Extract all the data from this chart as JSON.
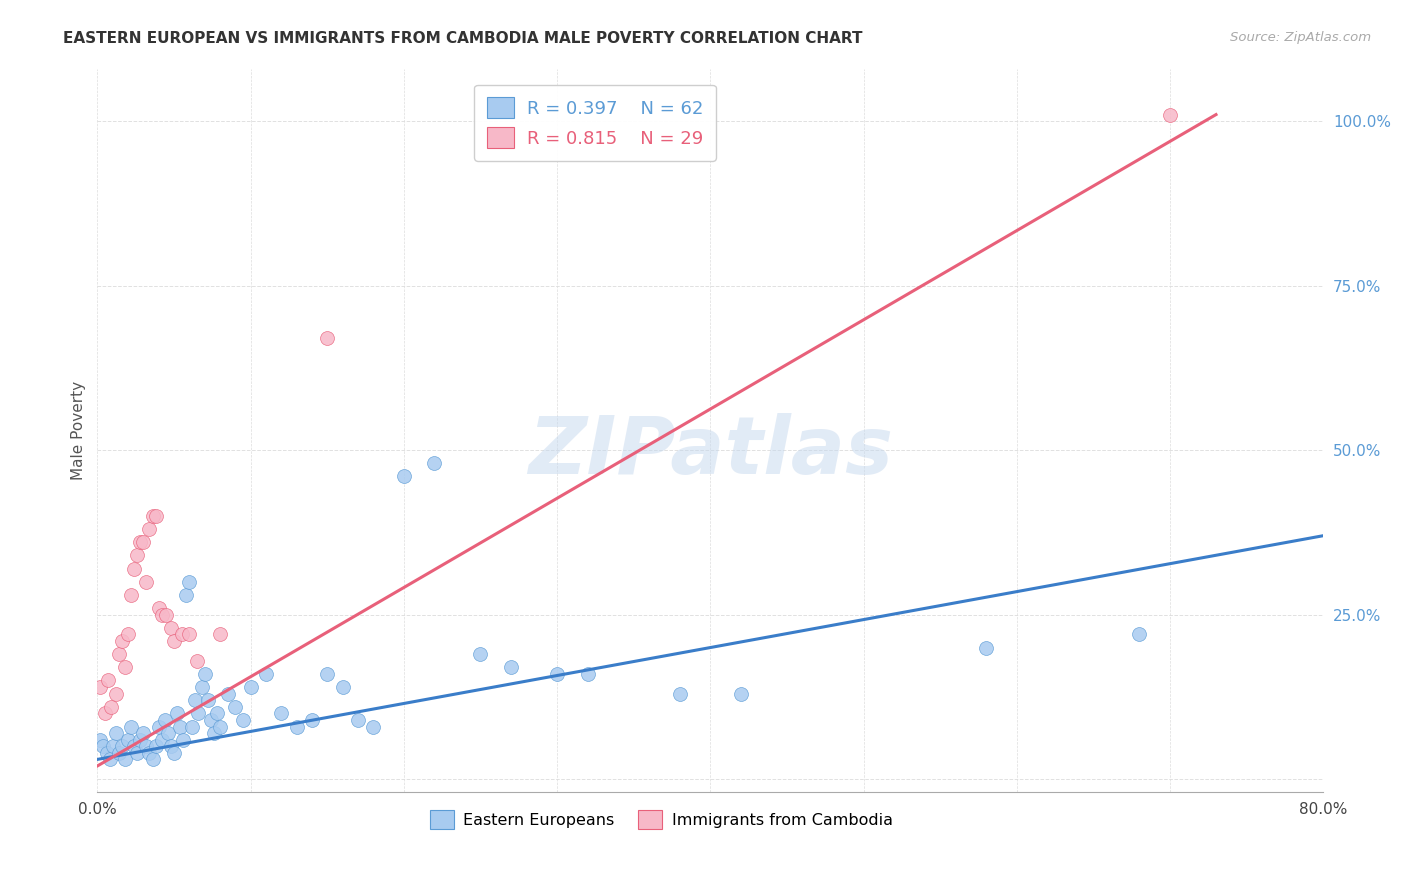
{
  "title": "EASTERN EUROPEAN VS IMMIGRANTS FROM CAMBODIA MALE POVERTY CORRELATION CHART",
  "source_text": "Source: ZipAtlas.com",
  "ylabel": "Male Poverty",
  "xlim": [
    0.0,
    0.8
  ],
  "ylim": [
    -0.02,
    1.08
  ],
  "xticks": [
    0.0,
    0.1,
    0.2,
    0.3,
    0.4,
    0.5,
    0.6,
    0.7,
    0.8
  ],
  "xticklabels": [
    "0.0%",
    "",
    "",
    "",
    "",
    "",
    "",
    "",
    "80.0%"
  ],
  "yticks": [
    0.0,
    0.25,
    0.5,
    0.75,
    1.0
  ],
  "yticklabels": [
    "",
    "25.0%",
    "50.0%",
    "75.0%",
    "100.0%"
  ],
  "legend_R1": "R = 0.397",
  "legend_N1": "N = 62",
  "legend_R2": "R = 0.815",
  "legend_N2": "N = 29",
  "watermark": "ZIPatlas",
  "blue_color": "#A8CBF0",
  "pink_color": "#F7B8C8",
  "blue_edge_color": "#5B9BD5",
  "pink_edge_color": "#E8607A",
  "blue_line_color": "#3A7DC9",
  "pink_line_color": "#E8607A",
  "blue_scatter": [
    [
      0.002,
      0.06
    ],
    [
      0.004,
      0.05
    ],
    [
      0.006,
      0.04
    ],
    [
      0.008,
      0.03
    ],
    [
      0.01,
      0.05
    ],
    [
      0.012,
      0.07
    ],
    [
      0.014,
      0.04
    ],
    [
      0.016,
      0.05
    ],
    [
      0.018,
      0.03
    ],
    [
      0.02,
      0.06
    ],
    [
      0.022,
      0.08
    ],
    [
      0.024,
      0.05
    ],
    [
      0.026,
      0.04
    ],
    [
      0.028,
      0.06
    ],
    [
      0.03,
      0.07
    ],
    [
      0.032,
      0.05
    ],
    [
      0.034,
      0.04
    ],
    [
      0.036,
      0.03
    ],
    [
      0.038,
      0.05
    ],
    [
      0.04,
      0.08
    ],
    [
      0.042,
      0.06
    ],
    [
      0.044,
      0.09
    ],
    [
      0.046,
      0.07
    ],
    [
      0.048,
      0.05
    ],
    [
      0.05,
      0.04
    ],
    [
      0.052,
      0.1
    ],
    [
      0.054,
      0.08
    ],
    [
      0.056,
      0.06
    ],
    [
      0.058,
      0.28
    ],
    [
      0.06,
      0.3
    ],
    [
      0.062,
      0.08
    ],
    [
      0.064,
      0.12
    ],
    [
      0.066,
      0.1
    ],
    [
      0.068,
      0.14
    ],
    [
      0.07,
      0.16
    ],
    [
      0.072,
      0.12
    ],
    [
      0.074,
      0.09
    ],
    [
      0.076,
      0.07
    ],
    [
      0.078,
      0.1
    ],
    [
      0.08,
      0.08
    ],
    [
      0.085,
      0.13
    ],
    [
      0.09,
      0.11
    ],
    [
      0.095,
      0.09
    ],
    [
      0.1,
      0.14
    ],
    [
      0.11,
      0.16
    ],
    [
      0.12,
      0.1
    ],
    [
      0.13,
      0.08
    ],
    [
      0.14,
      0.09
    ],
    [
      0.15,
      0.16
    ],
    [
      0.16,
      0.14
    ],
    [
      0.17,
      0.09
    ],
    [
      0.18,
      0.08
    ],
    [
      0.2,
      0.46
    ],
    [
      0.22,
      0.48
    ],
    [
      0.25,
      0.19
    ],
    [
      0.27,
      0.17
    ],
    [
      0.3,
      0.16
    ],
    [
      0.32,
      0.16
    ],
    [
      0.38,
      0.13
    ],
    [
      0.42,
      0.13
    ],
    [
      0.58,
      0.2
    ],
    [
      0.68,
      0.22
    ]
  ],
  "pink_scatter": [
    [
      0.002,
      0.14
    ],
    [
      0.005,
      0.1
    ],
    [
      0.007,
      0.15
    ],
    [
      0.009,
      0.11
    ],
    [
      0.012,
      0.13
    ],
    [
      0.014,
      0.19
    ],
    [
      0.016,
      0.21
    ],
    [
      0.018,
      0.17
    ],
    [
      0.02,
      0.22
    ],
    [
      0.022,
      0.28
    ],
    [
      0.024,
      0.32
    ],
    [
      0.026,
      0.34
    ],
    [
      0.028,
      0.36
    ],
    [
      0.03,
      0.36
    ],
    [
      0.032,
      0.3
    ],
    [
      0.034,
      0.38
    ],
    [
      0.036,
      0.4
    ],
    [
      0.038,
      0.4
    ],
    [
      0.04,
      0.26
    ],
    [
      0.042,
      0.25
    ],
    [
      0.045,
      0.25
    ],
    [
      0.048,
      0.23
    ],
    [
      0.05,
      0.21
    ],
    [
      0.055,
      0.22
    ],
    [
      0.06,
      0.22
    ],
    [
      0.065,
      0.18
    ],
    [
      0.08,
      0.22
    ],
    [
      0.15,
      0.67
    ],
    [
      0.7,
      1.01
    ]
  ],
  "blue_line_x": [
    0.0,
    0.8
  ],
  "blue_line_y": [
    0.03,
    0.37
  ],
  "pink_line_x": [
    0.0,
    0.73
  ],
  "pink_line_y": [
    0.02,
    1.01
  ]
}
